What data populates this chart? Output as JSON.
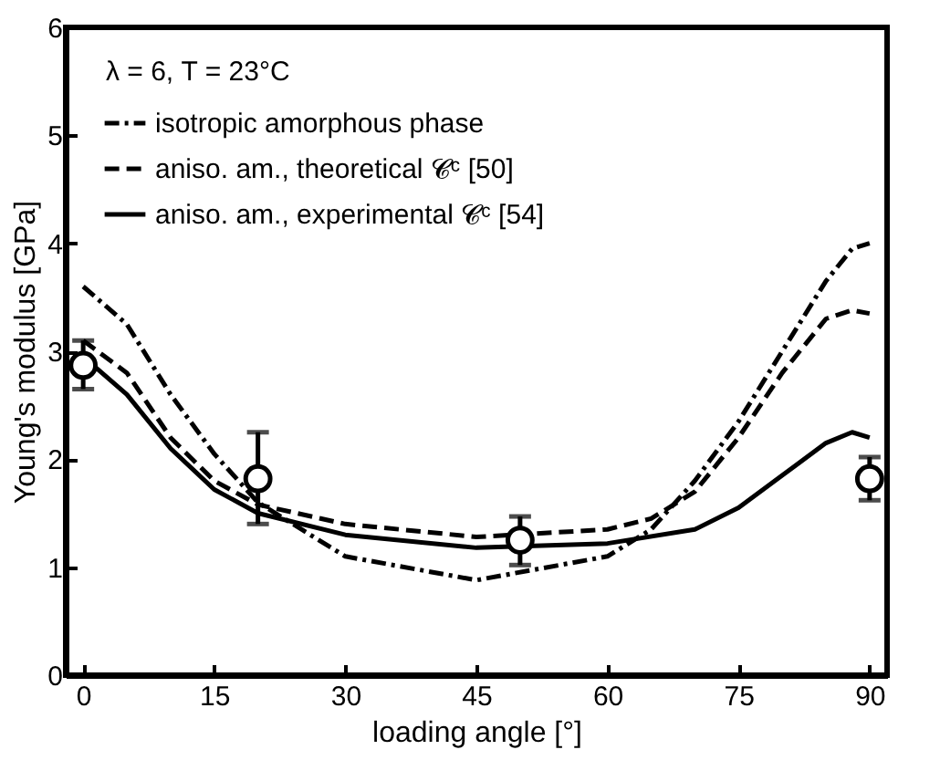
{
  "chart_data": {
    "type": "line",
    "xlabel": "loading angle [°]",
    "ylabel": "Young's modulus [GPa]",
    "annotations": [
      "λ = 6, T = 23°C"
    ],
    "xlim": [
      -2,
      92
    ],
    "xticks": [
      0,
      15,
      30,
      45,
      60,
      75,
      90
    ],
    "ylim": [
      0,
      6
    ],
    "yticks": [
      0,
      1,
      2,
      3,
      4,
      5,
      6
    ],
    "grid": false,
    "legend": "top left",
    "marker": "none",
    "series": [
      {
        "name": "isotropic amorphous phase",
        "color": "#000000",
        "line_style": "dashdot",
        "x": [
          0,
          5,
          10,
          15,
          20,
          30,
          45,
          60,
          65,
          70,
          75,
          80,
          85,
          88,
          90
        ],
        "values": [
          3.6,
          3.25,
          2.6,
          2.05,
          1.6,
          1.1,
          0.88,
          1.1,
          1.35,
          1.8,
          2.35,
          3.0,
          3.65,
          3.95,
          4.0
        ]
      },
      {
        "name": "aniso. am., theoretical 𝓒ᶜ [50]",
        "color": "#000000",
        "line_style": "dashed",
        "x": [
          0,
          5,
          10,
          15,
          20,
          30,
          45,
          60,
          65,
          70,
          75,
          80,
          85,
          88,
          90
        ],
        "values": [
          3.1,
          2.8,
          2.2,
          1.8,
          1.58,
          1.4,
          1.28,
          1.35,
          1.45,
          1.7,
          2.2,
          2.8,
          3.3,
          3.38,
          3.35
        ]
      },
      {
        "name": "aniso. am., experimental 𝓒ᶜ [54]",
        "color": "#000000",
        "line_style": "solid",
        "x": [
          0,
          5,
          10,
          15,
          20,
          30,
          45,
          60,
          70,
          75,
          80,
          85,
          88,
          90
        ],
        "values": [
          2.95,
          2.6,
          2.1,
          1.72,
          1.5,
          1.3,
          1.18,
          1.22,
          1.35,
          1.55,
          1.85,
          2.15,
          2.25,
          2.2
        ]
      },
      {
        "type": "scatter",
        "color": "#000000",
        "marker": "circle",
        "x": [
          0,
          20,
          50,
          90
        ],
        "values": [
          2.87,
          1.82,
          1.25,
          1.82
        ],
        "errors": [
          [
            2.65,
            3.1
          ],
          [
            1.4,
            2.25
          ],
          [
            1.02,
            1.47
          ],
          [
            1.62,
            2.02
          ]
        ]
      }
    ]
  }
}
